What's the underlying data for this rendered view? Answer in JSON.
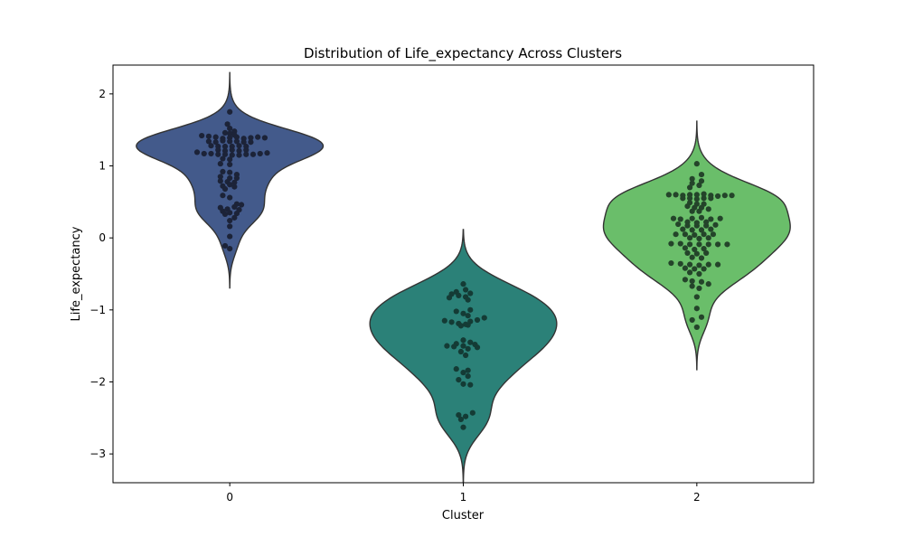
{
  "chart_data": {
    "type": "violin",
    "title": "Distribution of Life_expectancy Across Clusters",
    "xlabel": "Cluster",
    "ylabel": "Life_expectancy",
    "categories": [
      "0",
      "1",
      "2"
    ],
    "ylim": [
      -3.4,
      2.4
    ],
    "yticks": [
      2,
      1,
      0,
      -1,
      -2,
      -3
    ],
    "ytick_labels": [
      "2",
      "1",
      "0",
      "−1",
      "−2",
      "−3"
    ],
    "grid": false,
    "series": [
      {
        "category": "0",
        "fill": "#435a8b",
        "point_color": "#1c2338",
        "points": [
          [
            -0.12,
            1.42
          ],
          [
            -0.09,
            1.41
          ],
          [
            -0.06,
            1.4
          ],
          [
            -0.03,
            1.38
          ],
          [
            0.0,
            1.39
          ],
          [
            0.03,
            1.4
          ],
          [
            0.06,
            1.38
          ],
          [
            0.09,
            1.39
          ],
          [
            0.12,
            1.4
          ],
          [
            0.15,
            1.39
          ],
          [
            -0.09,
            1.34
          ],
          [
            -0.06,
            1.33
          ],
          [
            -0.03,
            1.35
          ],
          [
            0.0,
            1.34
          ],
          [
            0.03,
            1.34
          ],
          [
            0.06,
            1.33
          ],
          [
            0.09,
            1.33
          ],
          [
            -0.08,
            1.28
          ],
          [
            -0.05,
            1.27
          ],
          [
            -0.02,
            1.27
          ],
          [
            0.01,
            1.27
          ],
          [
            0.04,
            1.28
          ],
          [
            0.07,
            1.27
          ],
          [
            -0.05,
            1.22
          ],
          [
            -0.02,
            1.21
          ],
          [
            0.01,
            1.22
          ],
          [
            0.04,
            1.21
          ],
          [
            0.07,
            1.22
          ],
          [
            -0.14,
            1.19
          ],
          [
            -0.11,
            1.17
          ],
          [
            -0.08,
            1.17
          ],
          [
            -0.05,
            1.16
          ],
          [
            -0.02,
            1.16
          ],
          [
            0.01,
            1.15
          ],
          [
            0.04,
            1.15
          ],
          [
            0.07,
            1.16
          ],
          [
            0.1,
            1.16
          ],
          [
            0.13,
            1.17
          ],
          [
            0.16,
            1.18
          ],
          [
            0.0,
            1.75
          ],
          [
            -0.01,
            1.58
          ],
          [
            0.0,
            1.52
          ],
          [
            0.02,
            1.48
          ],
          [
            -0.02,
            1.46
          ],
          [
            0.0,
            1.45
          ],
          [
            0.02,
            1.43
          ],
          [
            -0.03,
            1.1
          ],
          [
            0.0,
            1.09
          ],
          [
            -0.04,
            1.03
          ],
          [
            0.0,
            1.02
          ],
          [
            -0.03,
            0.92
          ],
          [
            0.0,
            0.91
          ],
          [
            0.03,
            0.88
          ],
          [
            -0.04,
            0.85
          ],
          [
            0.0,
            0.83
          ],
          [
            0.03,
            0.83
          ],
          [
            -0.04,
            0.79
          ],
          [
            -0.01,
            0.78
          ],
          [
            0.02,
            0.77
          ],
          [
            0.0,
            0.74
          ],
          [
            -0.03,
            0.72
          ],
          [
            0.02,
            0.71
          ],
          [
            -0.02,
            0.68
          ],
          [
            -0.03,
            0.59
          ],
          [
            0.0,
            0.56
          ],
          [
            0.03,
            0.47
          ],
          [
            0.05,
            0.46
          ],
          [
            0.02,
            0.43
          ],
          [
            -0.04,
            0.42
          ],
          [
            -0.01,
            0.4
          ],
          [
            0.04,
            0.39
          ],
          [
            -0.03,
            0.37
          ],
          [
            0.0,
            0.35
          ],
          [
            0.03,
            0.34
          ],
          [
            -0.02,
            0.33
          ],
          [
            0.02,
            0.28
          ],
          [
            0.0,
            0.24
          ],
          [
            0.0,
            0.16
          ],
          [
            0.0,
            0.02
          ],
          [
            -0.02,
            -0.11
          ],
          [
            0.0,
            -0.15
          ]
        ]
      },
      {
        "category": "1",
        "fill": "#2b8178",
        "point_color": "#143b35",
        "points": [
          [
            0.0,
            -0.64
          ],
          [
            0.01,
            -0.72
          ],
          [
            -0.03,
            -0.75
          ],
          [
            0.03,
            -0.77
          ],
          [
            -0.05,
            -0.78
          ],
          [
            -0.02,
            -0.8
          ],
          [
            0.01,
            -0.82
          ],
          [
            -0.06,
            -0.83
          ],
          [
            0.02,
            -0.86
          ],
          [
            0.03,
            -1.0
          ],
          [
            -0.03,
            -1.02
          ],
          [
            0.0,
            -1.05
          ],
          [
            0.02,
            -1.08
          ],
          [
            0.09,
            -1.11
          ],
          [
            0.06,
            -1.14
          ],
          [
            -0.08,
            -1.15
          ],
          [
            0.03,
            -1.16
          ],
          [
            -0.05,
            -1.17
          ],
          [
            -0.02,
            -1.19
          ],
          [
            0.01,
            -1.2
          ],
          [
            -0.01,
            -1.22
          ],
          [
            0.02,
            -1.21
          ],
          [
            0.0,
            -1.42
          ],
          [
            0.03,
            -1.45
          ],
          [
            -0.03,
            -1.47
          ],
          [
            0.05,
            -1.48
          ],
          [
            -0.07,
            -1.5
          ],
          [
            0.0,
            -1.5
          ],
          [
            -0.04,
            -1.51
          ],
          [
            0.06,
            -1.52
          ],
          [
            0.02,
            -1.54
          ],
          [
            -0.01,
            -1.58
          ],
          [
            0.01,
            -1.63
          ],
          [
            -0.03,
            -1.82
          ],
          [
            0.02,
            -1.84
          ],
          [
            0.0,
            -1.87
          ],
          [
            0.02,
            -1.92
          ],
          [
            -0.02,
            -1.97
          ],
          [
            0.0,
            -2.03
          ],
          [
            0.03,
            -2.04
          ],
          [
            0.04,
            -2.43
          ],
          [
            -0.02,
            -2.46
          ],
          [
            0.01,
            -2.48
          ],
          [
            -0.01,
            -2.52
          ],
          [
            0.0,
            -2.63
          ]
        ]
      },
      {
        "category": "2",
        "fill": "#6abe6a",
        "point_color": "#24442a",
        "points": [
          [
            0.0,
            1.03
          ],
          [
            0.02,
            0.88
          ],
          [
            -0.02,
            0.82
          ],
          [
            0.02,
            0.79
          ],
          [
            -0.02,
            0.76
          ],
          [
            0.01,
            0.73
          ],
          [
            -0.03,
            0.7
          ],
          [
            -0.12,
            0.6
          ],
          [
            -0.09,
            0.6
          ],
          [
            -0.06,
            0.59
          ],
          [
            -0.03,
            0.6
          ],
          [
            0.0,
            0.6
          ],
          [
            0.03,
            0.61
          ],
          [
            0.06,
            0.59
          ],
          [
            0.09,
            0.58
          ],
          [
            0.12,
            0.59
          ],
          [
            0.15,
            0.59
          ],
          [
            -0.06,
            0.55
          ],
          [
            -0.03,
            0.55
          ],
          [
            0.0,
            0.54
          ],
          [
            0.03,
            0.55
          ],
          [
            0.06,
            0.55
          ],
          [
            -0.03,
            0.49
          ],
          [
            0.0,
            0.47
          ],
          [
            0.03,
            0.47
          ],
          [
            -0.04,
            0.44
          ],
          [
            -0.01,
            0.42
          ],
          [
            0.02,
            0.42
          ],
          [
            0.05,
            0.4
          ],
          [
            -0.02,
            0.37
          ],
          [
            0.01,
            0.37
          ],
          [
            -0.1,
            0.27
          ],
          [
            -0.07,
            0.26
          ],
          [
            -0.02,
            0.27
          ],
          [
            0.02,
            0.28
          ],
          [
            0.06,
            0.26
          ],
          [
            0.1,
            0.27
          ],
          [
            -0.04,
            0.22
          ],
          [
            0.0,
            0.21
          ],
          [
            0.04,
            0.22
          ],
          [
            -0.08,
            0.19
          ],
          [
            -0.04,
            0.17
          ],
          [
            0.0,
            0.17
          ],
          [
            0.04,
            0.17
          ],
          [
            0.08,
            0.18
          ],
          [
            -0.06,
            0.12
          ],
          [
            -0.02,
            0.11
          ],
          [
            0.02,
            0.11
          ],
          [
            0.06,
            0.12
          ],
          [
            -0.09,
            0.05
          ],
          [
            -0.05,
            0.05
          ],
          [
            -0.01,
            0.04
          ],
          [
            0.03,
            0.05
          ],
          [
            0.07,
            0.05
          ],
          [
            -0.03,
            0.0
          ],
          [
            0.01,
            -0.01
          ],
          [
            0.05,
            0.0
          ],
          [
            -0.11,
            -0.08
          ],
          [
            -0.07,
            -0.08
          ],
          [
            -0.03,
            -0.09
          ],
          [
            0.01,
            -0.09
          ],
          [
            0.05,
            -0.09
          ],
          [
            0.09,
            -0.09
          ],
          [
            0.13,
            -0.09
          ],
          [
            -0.05,
            -0.14
          ],
          [
            -0.01,
            -0.16
          ],
          [
            0.03,
            -0.15
          ],
          [
            -0.04,
            -0.21
          ],
          [
            0.0,
            -0.22
          ],
          [
            0.04,
            -0.21
          ],
          [
            -0.02,
            -0.27
          ],
          [
            0.02,
            -0.28
          ],
          [
            -0.11,
            -0.35
          ],
          [
            -0.07,
            -0.36
          ],
          [
            -0.03,
            -0.37
          ],
          [
            0.01,
            -0.38
          ],
          [
            0.05,
            -0.37
          ],
          [
            0.09,
            -0.37
          ],
          [
            -0.05,
            -0.42
          ],
          [
            -0.01,
            -0.43
          ],
          [
            0.03,
            -0.43
          ],
          [
            -0.03,
            -0.48
          ],
          [
            0.01,
            -0.5
          ],
          [
            -0.05,
            -0.58
          ],
          [
            -0.02,
            -0.6
          ],
          [
            0.02,
            -0.61
          ],
          [
            0.05,
            -0.64
          ],
          [
            -0.02,
            -0.67
          ],
          [
            0.01,
            -0.7
          ],
          [
            0.0,
            -0.82
          ],
          [
            0.0,
            -0.98
          ],
          [
            0.02,
            -1.1
          ],
          [
            -0.02,
            -1.14
          ],
          [
            0.0,
            -1.24
          ]
        ]
      }
    ]
  }
}
